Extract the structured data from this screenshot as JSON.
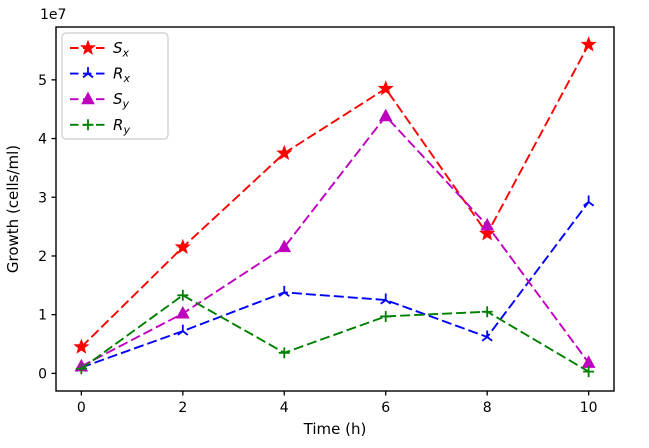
{
  "figure": {
    "background": "#ffffff",
    "spine_color": "#000000"
  },
  "chart_data": {
    "type": "line",
    "title": "",
    "xlabel": "Time (h)",
    "ylabel": "Growth (cells/ml)",
    "offset_text": "1e7",
    "x": [
      0,
      2,
      4,
      6,
      8,
      10
    ],
    "xticks": [
      0,
      2,
      4,
      6,
      8,
      10
    ],
    "yticks_e7": [
      0,
      1,
      2,
      3,
      4,
      5
    ],
    "xlim": [
      -0.5,
      10.5
    ],
    "ylim_e7": [
      -0.3,
      5.9
    ],
    "grid": false,
    "legend_position": "upper left",
    "series": [
      {
        "name": "S_x",
        "label_base": "S",
        "label_sub": "x",
        "color": "#ff0000",
        "marker": "star",
        "linestyle": "dashed",
        "values_e7": [
          0.45,
          2.15,
          3.75,
          4.85,
          2.38,
          5.6
        ]
      },
      {
        "name": "R_x",
        "label_base": "R",
        "label_sub": "x",
        "color": "#0000ff",
        "marker": "tri-up",
        "linestyle": "dashed",
        "values_e7": [
          0.1,
          0.72,
          1.38,
          1.25,
          0.62,
          2.92
        ]
      },
      {
        "name": "S_y",
        "label_base": "S",
        "label_sub": "y",
        "color": "#bf00bf",
        "marker": "triangle-up",
        "linestyle": "dashed",
        "values_e7": [
          0.12,
          1.02,
          2.15,
          4.38,
          2.52,
          0.18
        ]
      },
      {
        "name": "R_y",
        "label_base": "R",
        "label_sub": "y",
        "color": "#008000",
        "marker": "plus",
        "linestyle": "dashed",
        "values_e7": [
          0.08,
          1.33,
          0.35,
          0.97,
          1.05,
          0.03
        ]
      }
    ]
  }
}
